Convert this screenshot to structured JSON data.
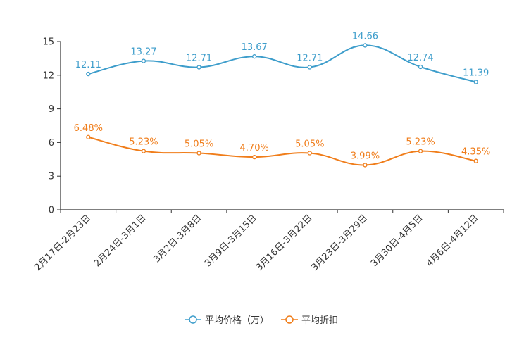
{
  "chart_data": {
    "type": "line",
    "title": "",
    "xlabel": "",
    "ylabel": "",
    "categories": [
      "2月17日-2月23日",
      "2月24日-3月1日",
      "3月2日-3月8日",
      "3月9日-3月15日",
      "3月16日-3月22日",
      "3月23日-3月29日",
      "3月30日-4月5日",
      "4月6日-4月12日"
    ],
    "ylim": [
      0,
      15
    ],
    "yticks": [
      0,
      3,
      6,
      9,
      12,
      15
    ],
    "grid": false,
    "legend_position": "bottom",
    "series": [
      {
        "name": "平均价格（万）",
        "color": "#3d9dcb",
        "values": [
          12.11,
          13.27,
          12.71,
          13.67,
          12.71,
          14.66,
          12.74,
          11.39
        ],
        "labels": [
          "12.11",
          "13.27",
          "12.71",
          "13.67",
          "12.71",
          "14.66",
          "12.74",
          "11.39"
        ]
      },
      {
        "name": "平均折扣",
        "color": "#f07d1a",
        "values": [
          6.48,
          5.23,
          5.05,
          4.7,
          5.05,
          3.99,
          5.23,
          4.35
        ],
        "labels": [
          "6.48%",
          "5.23%",
          "5.05%",
          "4.70%",
          "5.05%",
          "3.99%",
          "5.23%",
          "4.35%"
        ]
      }
    ]
  }
}
